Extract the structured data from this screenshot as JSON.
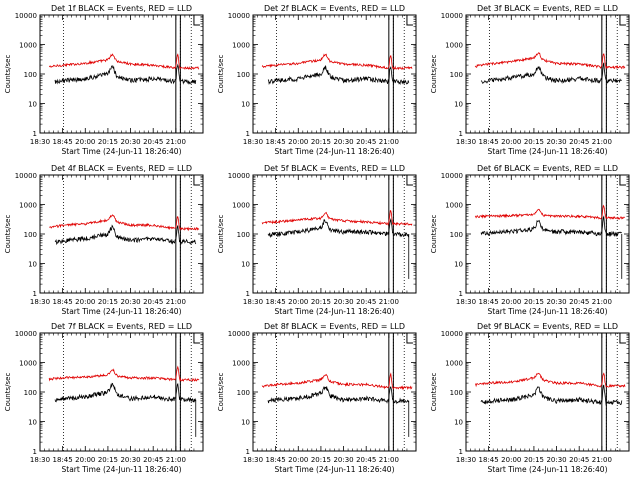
{
  "figure": {
    "colors": {
      "events": "#000000",
      "lld": "#e00000",
      "axis": "#000000"
    },
    "x_ticks": [
      "18:30",
      "18:45",
      "20:00",
      "20:15",
      "20:30",
      "20:45",
      "21:00"
    ],
    "y_ticks": [
      "1",
      "10",
      "100",
      "1000",
      "10000"
    ],
    "ylabel": "Counts/sec",
    "xlabel": "Start Time (24-Jun-11 18:26:40)",
    "panels": [
      {
        "title": "Det 1f BLACK = Events, RED = LLD"
      },
      {
        "title": "Det 2f BLACK = Events, RED = LLD"
      },
      {
        "title": "Det 3f BLACK = Events, RED = LLD"
      },
      {
        "title": "Det 4f BLACK = Events, RED = LLD"
      },
      {
        "title": "Det 5f BLACK = Events, RED = LLD"
      },
      {
        "title": "Det 6f BLACK = Events, RED = LLD"
      },
      {
        "title": "Det 7f BLACK = Events, RED = LLD"
      },
      {
        "title": "Det 8f BLACK = Events, RED = LLD"
      },
      {
        "title": "Det 9f BLACK = Events, RED = LLD"
      }
    ]
  },
  "chart_data": [
    {
      "type": "line",
      "title": "Det 1f BLACK = Events, RED = LLD",
      "ylabel": "Counts/sec",
      "xlabel": "Start Time (24-Jun-11 18:26:40)",
      "yscale": "log",
      "ylim": [
        1,
        10000
      ],
      "categories": [
        "18:30",
        "18:45",
        "20:00",
        "20:15",
        "20:30",
        "20:45",
        "21:00"
      ],
      "series": [
        {
          "name": "Events",
          "values": [
            45,
            60,
            70,
            100,
            60,
            70,
            55
          ]
        },
        {
          "name": "LLD",
          "values": [
            160,
            200,
            230,
            300,
            220,
            200,
            160
          ]
        }
      ]
    },
    {
      "type": "line",
      "title": "Det 2f BLACK = Events, RED = LLD",
      "ylabel": "Counts/sec",
      "xlabel": "Start Time (24-Jun-11 18:26:40)",
      "yscale": "log",
      "ylim": [
        1,
        10000
      ],
      "categories": [
        "18:30",
        "18:45",
        "20:00",
        "20:15",
        "20:30",
        "20:45",
        "21:00"
      ],
      "series": [
        {
          "name": "Events",
          "values": [
            45,
            60,
            70,
            100,
            60,
            70,
            55
          ]
        },
        {
          "name": "LLD",
          "values": [
            160,
            200,
            230,
            300,
            220,
            200,
            160
          ]
        }
      ]
    },
    {
      "type": "line",
      "title": "Det 3f BLACK = Events, RED = LLD",
      "ylabel": "Counts/sec",
      "xlabel": "Start Time (24-Jun-11 18:26:40)",
      "yscale": "log",
      "ylim": [
        1,
        10000
      ],
      "categories": [
        "18:30",
        "18:45",
        "20:00",
        "20:15",
        "20:30",
        "20:45",
        "21:00"
      ],
      "series": [
        {
          "name": "Events",
          "values": [
            40,
            60,
            75,
            100,
            60,
            70,
            60
          ]
        },
        {
          "name": "LLD",
          "values": [
            160,
            220,
            260,
            350,
            230,
            220,
            170
          ]
        }
      ]
    },
    {
      "type": "line",
      "title": "Det 4f BLACK = Events, RED = LLD",
      "ylabel": "Counts/sec",
      "xlabel": "Start Time (24-Jun-11 18:26:40)",
      "yscale": "log",
      "ylim": [
        1,
        10000
      ],
      "categories": [
        "18:30",
        "18:45",
        "20:00",
        "20:15",
        "20:30",
        "20:45",
        "21:00"
      ],
      "series": [
        {
          "name": "Events",
          "values": [
            40,
            60,
            70,
            100,
            60,
            70,
            55
          ]
        },
        {
          "name": "LLD",
          "values": [
            140,
            200,
            220,
            300,
            200,
            200,
            150
          ]
        }
      ]
    },
    {
      "type": "line",
      "title": "Det 5f BLACK = Events, RED = LLD",
      "ylabel": "Counts/sec",
      "xlabel": "Start Time (24-Jun-11 18:26:40)",
      "yscale": "log",
      "ylim": [
        1,
        10000
      ],
      "categories": [
        "18:30",
        "18:45",
        "20:00",
        "20:15",
        "20:30",
        "20:45",
        "21:00"
      ],
      "series": [
        {
          "name": "Events",
          "values": [
            80,
            100,
            120,
            160,
            120,
            120,
            100
          ]
        },
        {
          "name": "LLD",
          "values": [
            220,
            260,
            300,
            340,
            280,
            260,
            220
          ]
        }
      ]
    },
    {
      "type": "line",
      "title": "Det 6f BLACK = Events, RED = LLD",
      "ylabel": "Counts/sec",
      "xlabel": "Start Time (24-Jun-11 18:26:40)",
      "yscale": "log",
      "ylim": [
        1,
        10000
      ],
      "categories": [
        "18:30",
        "18:45",
        "20:00",
        "20:15",
        "20:30",
        "20:45",
        "21:00"
      ],
      "series": [
        {
          "name": "Events",
          "values": [
            90,
            110,
            120,
            150,
            120,
            120,
            100
          ]
        },
        {
          "name": "LLD",
          "values": [
            380,
            400,
            420,
            450,
            400,
            400,
            350
          ]
        }
      ]
    },
    {
      "type": "line",
      "title": "Det 7f BLACK = Events, RED = LLD",
      "ylabel": "Counts/sec",
      "xlabel": "Start Time (24-Jun-11 18:26:40)",
      "yscale": "log",
      "ylim": [
        1,
        10000
      ],
      "categories": [
        "18:30",
        "18:45",
        "20:00",
        "20:15",
        "20:30",
        "20:45",
        "21:00"
      ],
      "series": [
        {
          "name": "Events",
          "values": [
            40,
            60,
            70,
            100,
            60,
            70,
            55
          ]
        },
        {
          "name": "LLD",
          "values": [
            260,
            300,
            320,
            380,
            300,
            300,
            260
          ]
        }
      ]
    },
    {
      "type": "line",
      "title": "Det 8f BLACK = Events, RED = LLD",
      "ylabel": "Counts/sec",
      "xlabel": "Start Time (24-Jun-11 18:26:40)",
      "yscale": "log",
      "ylim": [
        1,
        10000
      ],
      "categories": [
        "18:30",
        "18:45",
        "20:00",
        "20:15",
        "20:30",
        "20:45",
        "21:00"
      ],
      "series": [
        {
          "name": "Events",
          "values": [
            40,
            55,
            60,
            90,
            55,
            60,
            50
          ]
        },
        {
          "name": "LLD",
          "values": [
            140,
            180,
            200,
            260,
            180,
            180,
            140
          ]
        }
      ]
    },
    {
      "type": "line",
      "title": "Det 9f BLACK = Events, RED = LLD",
      "ylabel": "Counts/sec",
      "xlabel": "Start Time (24-Jun-11 18:26:40)",
      "yscale": "log",
      "ylim": [
        1,
        10000
      ],
      "categories": [
        "18:30",
        "18:45",
        "20:00",
        "20:15",
        "20:30",
        "20:45",
        "21:00"
      ],
      "series": [
        {
          "name": "Events",
          "values": [
            35,
            50,
            55,
            80,
            50,
            55,
            45
          ]
        },
        {
          "name": "LLD",
          "values": [
            160,
            200,
            220,
            300,
            200,
            200,
            160
          ]
        }
      ]
    }
  ]
}
